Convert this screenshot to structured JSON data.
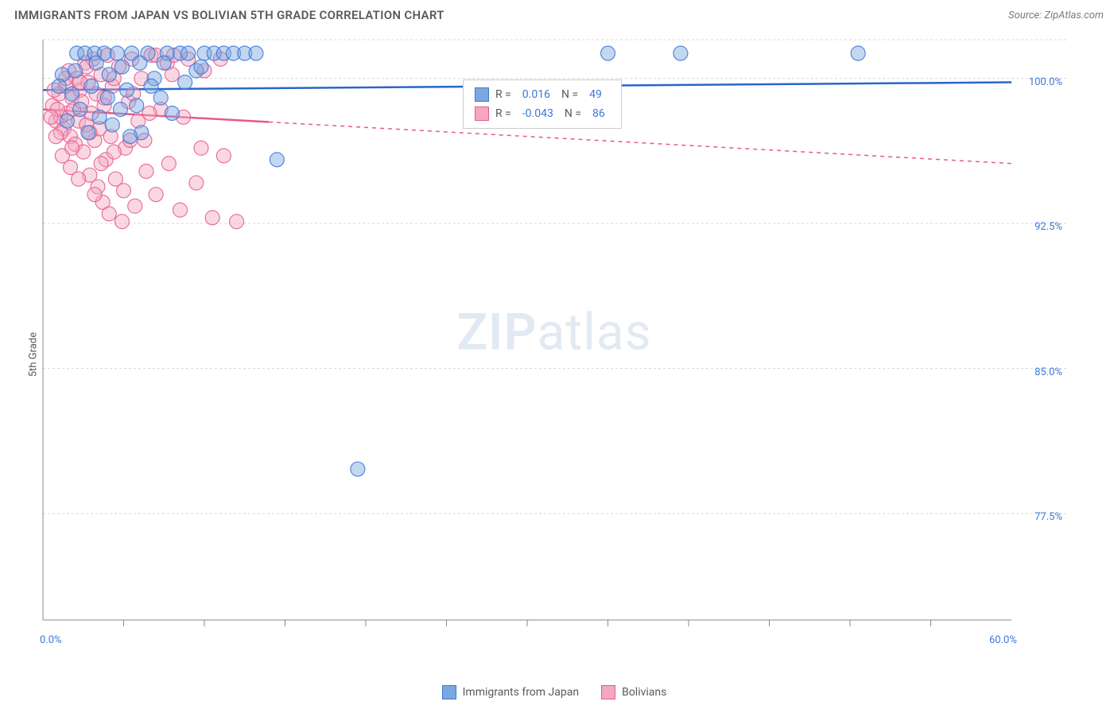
{
  "header": {
    "title": "IMMIGRANTS FROM JAPAN VS BOLIVIAN 5TH GRADE CORRELATION CHART",
    "source": "Source: ZipAtlas.com"
  },
  "y_axis": {
    "label": "5th Grade"
  },
  "watermark": {
    "zip": "ZIP",
    "atlas": "atlas"
  },
  "chart": {
    "type": "scatter",
    "background_color": "#ffffff",
    "grid_color": "#d8d8d8",
    "axis_color": "#888888",
    "tick_label_color": "#3b78d8",
    "xlim": [
      0,
      60
    ],
    "ylim": [
      72,
      102
    ],
    "x_ticks_major": [
      0,
      60
    ],
    "x_ticks_minor": [
      5,
      10,
      15,
      20,
      25,
      30,
      35,
      40,
      45,
      50,
      55
    ],
    "x_tick_labels": {
      "0": "0.0%",
      "60": "60.0%"
    },
    "y_ticks": [
      77.5,
      85.0,
      92.5,
      100.0
    ],
    "y_tick_labels": {
      "77.5": "77.5%",
      "85.0": "85.0%",
      "92.5": "92.5%",
      "100.0": "100.0%"
    },
    "marker_radius": 9,
    "marker_opacity": 0.45,
    "marker_stroke_width": 1.2,
    "line_width": 2.5,
    "series": [
      {
        "name": "Immigrants from Japan",
        "fill_color": "#7ba7e0",
        "stroke_color": "#3b78d8",
        "line_color": "#2a66c8",
        "trend": {
          "y_start": 99.4,
          "y_end": 99.8,
          "x_solid_end": 60
        },
        "R": "0.016",
        "N": "49",
        "points": [
          [
            1.2,
            100.2
          ],
          [
            1.8,
            99.2
          ],
          [
            2.1,
            101.3
          ],
          [
            2.3,
            98.4
          ],
          [
            2.6,
            101.3
          ],
          [
            3.0,
            99.6
          ],
          [
            3.2,
            101.3
          ],
          [
            3.5,
            98.0
          ],
          [
            3.8,
            101.3
          ],
          [
            4.0,
            99.0
          ],
          [
            4.3,
            97.6
          ],
          [
            4.6,
            101.3
          ],
          [
            4.9,
            100.6
          ],
          [
            5.2,
            99.4
          ],
          [
            5.5,
            101.3
          ],
          [
            5.8,
            98.6
          ],
          [
            6.1,
            97.2
          ],
          [
            6.5,
            101.3
          ],
          [
            6.9,
            100.0
          ],
          [
            7.3,
            99.0
          ],
          [
            7.7,
            101.3
          ],
          [
            8.0,
            98.2
          ],
          [
            8.5,
            101.3
          ],
          [
            9.0,
            101.3
          ],
          [
            9.5,
            100.4
          ],
          [
            10.0,
            101.3
          ],
          [
            10.6,
            101.3
          ],
          [
            11.2,
            101.3
          ],
          [
            11.8,
            101.3
          ],
          [
            12.5,
            101.3
          ],
          [
            13.2,
            101.3
          ],
          [
            14.5,
            95.8
          ],
          [
            35.0,
            101.3
          ],
          [
            39.5,
            101.3
          ],
          [
            50.5,
            101.3
          ],
          [
            19.5,
            79.8
          ],
          [
            1.5,
            97.8
          ],
          [
            2.0,
            100.4
          ],
          [
            2.8,
            97.2
          ],
          [
            3.3,
            100.8
          ],
          [
            4.1,
            100.2
          ],
          [
            4.8,
            98.4
          ],
          [
            5.4,
            97.0
          ],
          [
            6.0,
            100.8
          ],
          [
            6.7,
            99.6
          ],
          [
            7.5,
            100.8
          ],
          [
            8.8,
            99.8
          ],
          [
            9.8,
            100.6
          ],
          [
            1.0,
            99.6
          ]
        ]
      },
      {
        "name": "Bolivians",
        "fill_color": "#f5a8c0",
        "stroke_color": "#e65a8a",
        "line_color": "#e65a8a",
        "trend": {
          "y_start": 98.4,
          "y_end": 95.6,
          "x_solid_end": 14
        },
        "R": "-0.043",
        "N": "86",
        "points": [
          [
            0.6,
            98.6
          ],
          [
            0.8,
            97.8
          ],
          [
            1.0,
            99.2
          ],
          [
            1.1,
            98.0
          ],
          [
            1.3,
            97.4
          ],
          [
            1.4,
            99.6
          ],
          [
            1.5,
            98.2
          ],
          [
            1.6,
            100.4
          ],
          [
            1.7,
            97.0
          ],
          [
            1.8,
            99.0
          ],
          [
            1.9,
            98.4
          ],
          [
            2.0,
            96.6
          ],
          [
            2.1,
            100.0
          ],
          [
            2.2,
            97.8
          ],
          [
            2.3,
            99.4
          ],
          [
            2.4,
            98.8
          ],
          [
            2.5,
            96.2
          ],
          [
            2.6,
            100.8
          ],
          [
            2.7,
            97.6
          ],
          [
            2.8,
            99.8
          ],
          [
            2.9,
            95.0
          ],
          [
            3.0,
            98.2
          ],
          [
            3.1,
            101.0
          ],
          [
            3.2,
            96.8
          ],
          [
            3.3,
            99.2
          ],
          [
            3.4,
            94.4
          ],
          [
            3.5,
            97.4
          ],
          [
            3.6,
            100.2
          ],
          [
            3.7,
            93.6
          ],
          [
            3.8,
            98.6
          ],
          [
            3.9,
            95.8
          ],
          [
            4.0,
            101.2
          ],
          [
            4.1,
            93.0
          ],
          [
            4.2,
            97.0
          ],
          [
            4.3,
            99.6
          ],
          [
            4.5,
            94.8
          ],
          [
            4.7,
            100.6
          ],
          [
            4.9,
            92.6
          ],
          [
            5.1,
            96.4
          ],
          [
            5.3,
            98.8
          ],
          [
            5.5,
            101.0
          ],
          [
            5.7,
            93.4
          ],
          [
            5.9,
            97.8
          ],
          [
            6.1,
            100.0
          ],
          [
            6.4,
            95.2
          ],
          [
            6.7,
            101.2
          ],
          [
            7.0,
            94.0
          ],
          [
            7.3,
            98.4
          ],
          [
            7.7,
            100.8
          ],
          [
            8.1,
            101.2
          ],
          [
            8.5,
            93.2
          ],
          [
            9.0,
            101.0
          ],
          [
            9.5,
            94.6
          ],
          [
            10.0,
            100.4
          ],
          [
            10.5,
            92.8
          ],
          [
            11.2,
            96.0
          ],
          [
            12.0,
            92.6
          ],
          [
            1.2,
            96.0
          ],
          [
            1.7,
            95.4
          ],
          [
            2.2,
            94.8
          ],
          [
            2.7,
            100.6
          ],
          [
            3.2,
            94.0
          ],
          [
            3.8,
            99.0
          ],
          [
            4.4,
            96.2
          ],
          [
            5.0,
            94.2
          ],
          [
            5.6,
            99.2
          ],
          [
            6.3,
            96.8
          ],
          [
            7.0,
            101.2
          ],
          [
            7.8,
            95.6
          ],
          [
            8.7,
            98.0
          ],
          [
            0.7,
            99.4
          ],
          [
            0.9,
            98.4
          ],
          [
            1.1,
            97.2
          ],
          [
            1.4,
            100.0
          ],
          [
            1.8,
            96.4
          ],
          [
            2.3,
            99.8
          ],
          [
            2.9,
            97.2
          ],
          [
            3.6,
            95.6
          ],
          [
            4.4,
            100.0
          ],
          [
            5.4,
            96.8
          ],
          [
            6.6,
            98.2
          ],
          [
            8.0,
            100.2
          ],
          [
            9.8,
            96.4
          ],
          [
            11.0,
            101.0
          ],
          [
            0.5,
            98.0
          ],
          [
            0.8,
            97.0
          ]
        ]
      }
    ]
  },
  "legend_box": {
    "rows": [
      {
        "R_label": "R =",
        "N_label": "N ="
      },
      {
        "R_label": "R =",
        "N_label": "N ="
      }
    ]
  },
  "bottom_legend": {
    "items": [
      {
        "label": "Immigrants from Japan"
      },
      {
        "label": "Bolivians"
      }
    ]
  }
}
